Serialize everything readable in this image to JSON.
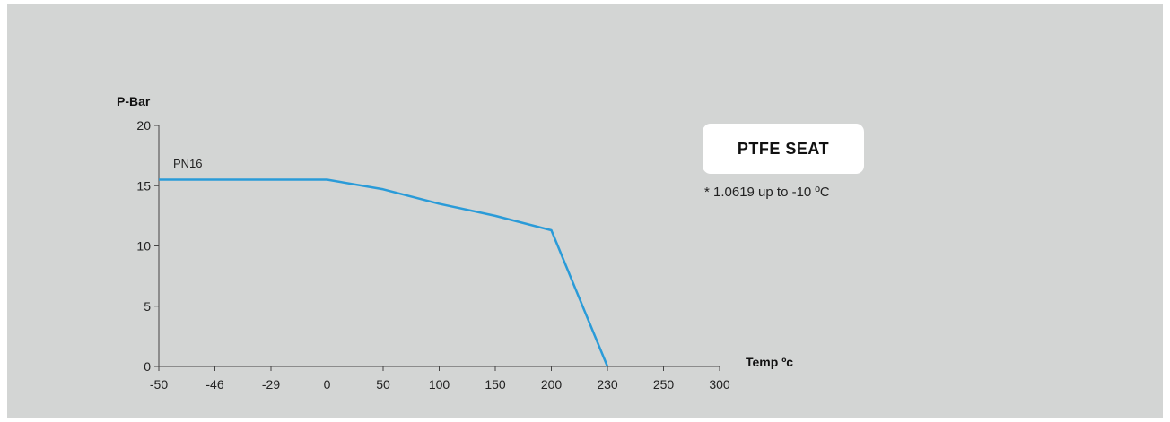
{
  "chart_data": {
    "type": "line",
    "title": "",
    "ylabel": "P-Bar",
    "xlabel": "Temp ºc",
    "x_ticks": [
      "-50",
      "-46",
      "-29",
      "0",
      "50",
      "100",
      "150",
      "200",
      "230",
      "250",
      "300"
    ],
    "y_ticks": [
      "0",
      "5",
      "10",
      "15",
      "20"
    ],
    "ylim": [
      0,
      20
    ],
    "grid": false,
    "series": [
      {
        "name": "PN16",
        "color": "#2a9bd8",
        "x": [
          "-50",
          "0",
          "50",
          "100",
          "150",
          "200",
          "230"
        ],
        "y": [
          15.5,
          15.5,
          14.7,
          13.5,
          12.5,
          11.3,
          0
        ]
      }
    ]
  },
  "badge": {
    "label": "PTFE SEAT"
  },
  "note": {
    "text": "* 1.0619 up to -10 ºC"
  }
}
